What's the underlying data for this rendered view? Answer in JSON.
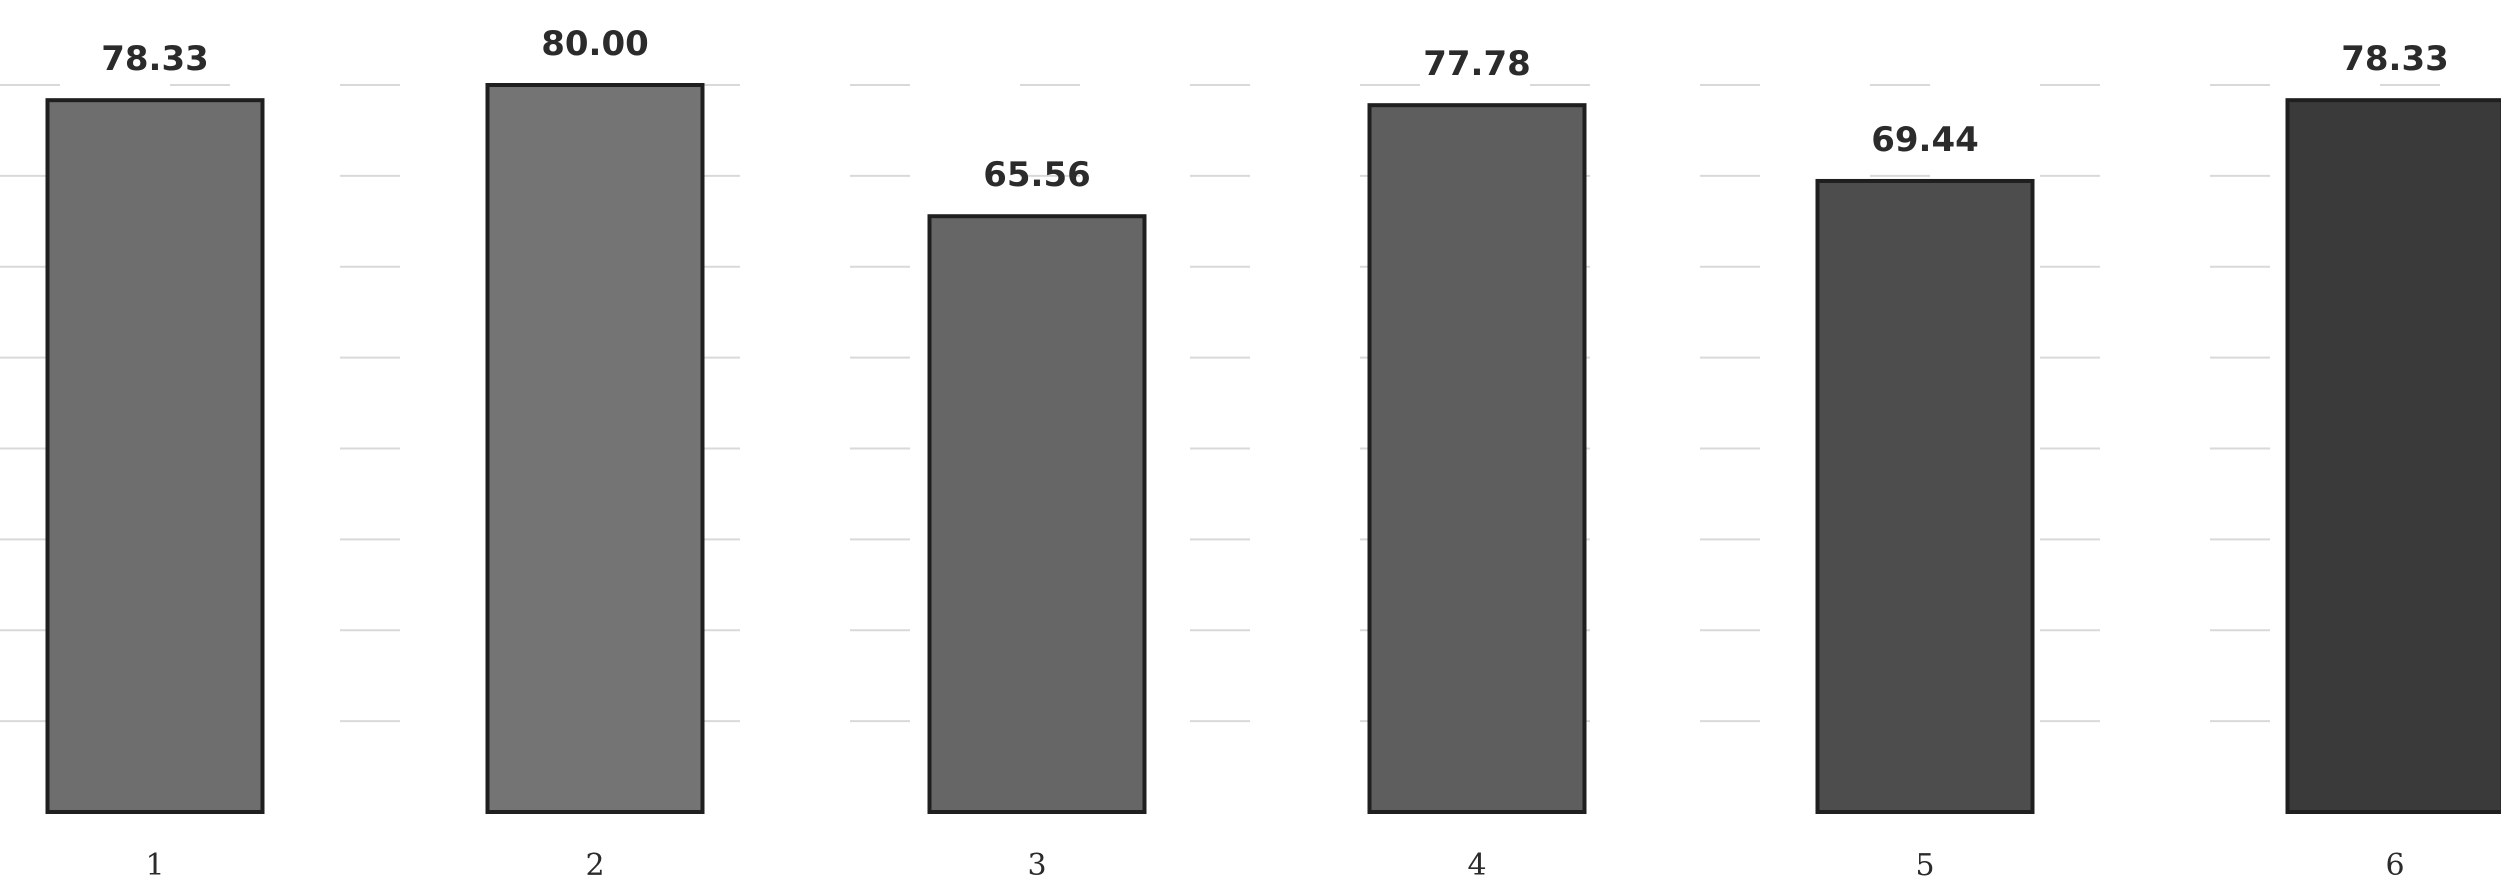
{
  "chart_data": {
    "type": "bar",
    "categories": [
      "1",
      "2",
      "3",
      "4",
      "5",
      "6"
    ],
    "values": [
      78.33,
      80.0,
      65.56,
      77.78,
      69.44,
      78.33
    ],
    "value_labels": [
      "78.33",
      "80.00",
      "65.56",
      "77.78",
      "69.44",
      "78.33"
    ],
    "title": "",
    "xlabel": "",
    "ylabel": "",
    "ylim": [
      0,
      80
    ],
    "grid": true,
    "legend": "none",
    "bar_colors": [
      "#6e6e6e",
      "#747474",
      "#666666",
      "#5e5e5e",
      "#4d4d4d",
      "#3a3a3a"
    ]
  }
}
